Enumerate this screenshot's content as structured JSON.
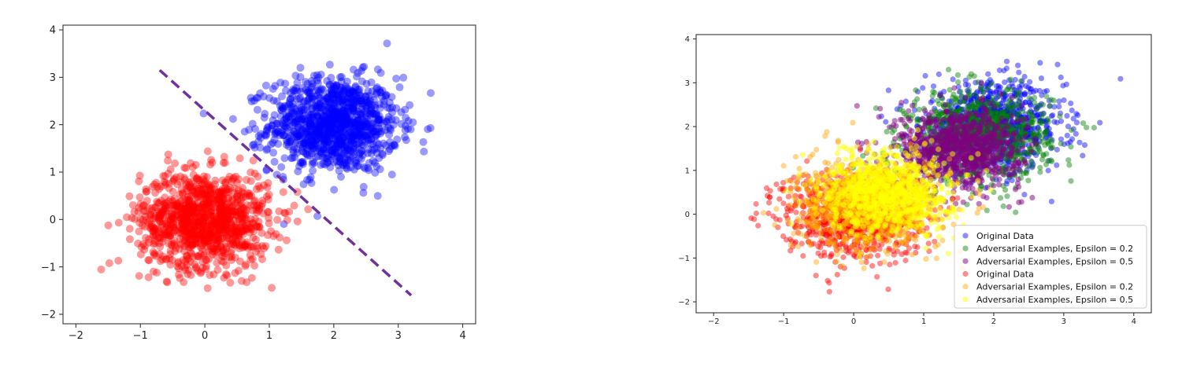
{
  "chart_data": [
    {
      "type": "scatter",
      "title": "",
      "xlabel": "",
      "ylabel": "",
      "xlim": [
        -2.2,
        4.2
      ],
      "ylim": [
        -2.2,
        4.1
      ],
      "xticks": [
        -2,
        -1,
        0,
        1,
        2,
        3,
        4
      ],
      "yticks": [
        -2,
        -1,
        0,
        1,
        2,
        3,
        4
      ],
      "xtick_labels": [
        "−2",
        "−1",
        "0",
        "1",
        "2",
        "3",
        "4"
      ],
      "ytick_labels": [
        "−2",
        "−1",
        "0",
        "1",
        "2",
        "3",
        "4"
      ],
      "grid": false,
      "series": [
        {
          "color": "#0000ff",
          "center": [
            2.0,
            2.0
          ],
          "spread": [
            0.5,
            0.5
          ],
          "alpha": 0.4
        },
        {
          "color": "#ff0000",
          "center": [
            0.0,
            0.0
          ],
          "spread": [
            0.5,
            0.5
          ],
          "alpha": 0.4
        }
      ],
      "decision_boundary": {
        "color": "#7030a0",
        "style": "dashed",
        "x": [
          -0.7,
          3.2
        ],
        "y": [
          3.15,
          -1.6
        ]
      }
    },
    {
      "type": "scatter",
      "title": "",
      "xlabel": "",
      "ylabel": "",
      "xlim": [
        -2.25,
        4.25
      ],
      "ylim": [
        -2.25,
        4.1
      ],
      "xticks": [
        -2,
        -1,
        0,
        1,
        2,
        3,
        4
      ],
      "yticks": [
        -2,
        -1,
        0,
        1,
        2,
        3,
        4
      ],
      "xtick_labels": [
        "−2",
        "−1",
        "0",
        "1",
        "2",
        "3",
        "4"
      ],
      "ytick_labels": [
        "−2",
        "−1",
        "0",
        "1",
        "2",
        "3",
        "4"
      ],
      "grid": false,
      "legend_position": "lower-right",
      "series": [
        {
          "name": "Original Data",
          "color": "#0000ff",
          "center": [
            2.0,
            2.0
          ],
          "spread": [
            0.5,
            0.5
          ],
          "alpha": 0.45
        },
        {
          "name": "Adversarial Examples, Epsilon = 0.2",
          "color": "#008000",
          "center": [
            1.8,
            1.8
          ],
          "spread": [
            0.5,
            0.5
          ],
          "alpha": 0.45
        },
        {
          "name": "Adversarial Examples, Epsilon = 0.5",
          "color": "#800080",
          "center": [
            1.5,
            1.5
          ],
          "spread": [
            0.45,
            0.45
          ],
          "alpha": 0.5
        },
        {
          "name": "Original Data",
          "color": "#ff0000",
          "center": [
            0.0,
            0.0
          ],
          "spread": [
            0.5,
            0.5
          ],
          "alpha": 0.45
        },
        {
          "name": "Adversarial Examples, Epsilon = 0.2",
          "color": "#ffa500",
          "center": [
            0.2,
            0.2
          ],
          "spread": [
            0.5,
            0.5
          ],
          "alpha": 0.45
        },
        {
          "name": "Adversarial Examples, Epsilon = 0.5",
          "color": "#ffff00",
          "center": [
            0.5,
            0.5
          ],
          "spread": [
            0.45,
            0.45
          ],
          "alpha": 0.5
        }
      ]
    }
  ]
}
